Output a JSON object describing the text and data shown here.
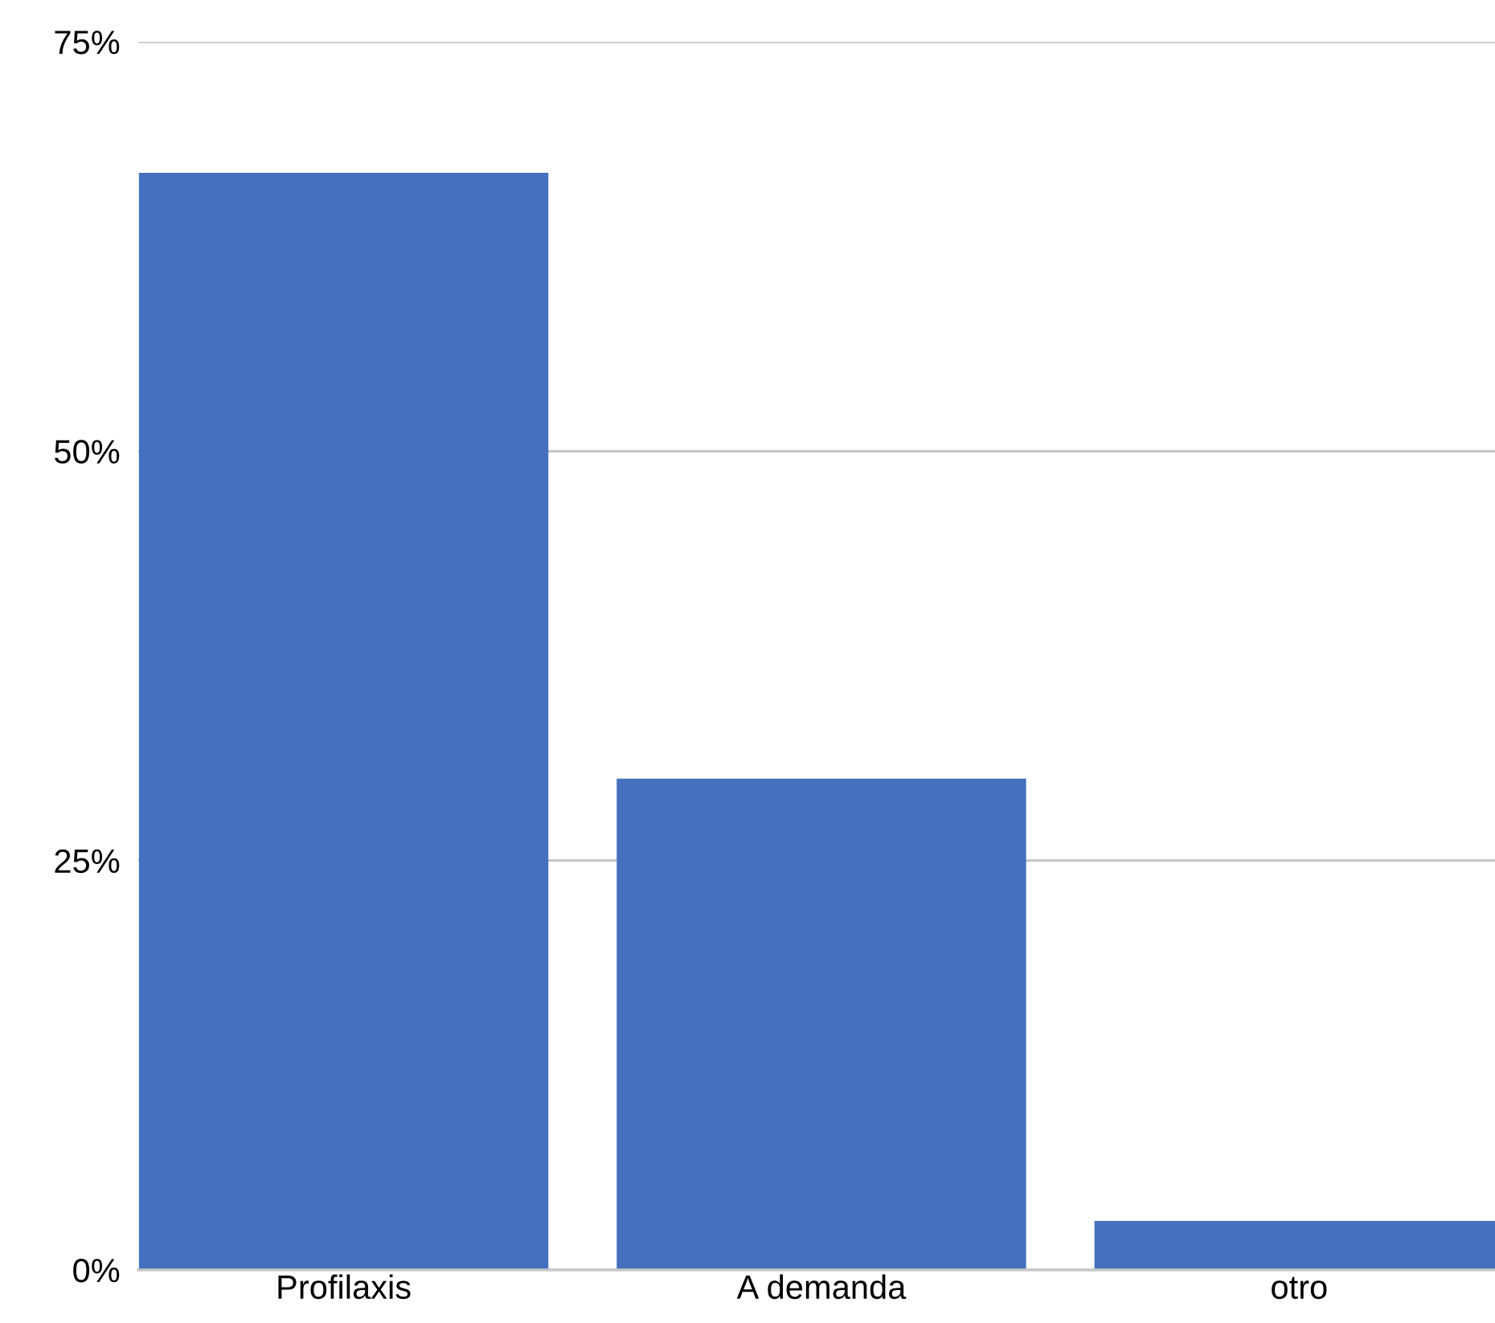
{
  "chart_data": {
    "type": "bar",
    "categories": [
      "Profilaxis",
      "A demanda",
      "otro"
    ],
    "values": [
      67,
      30,
      3
    ],
    "color": "#4470be",
    "ylim": [
      0,
      75
    ],
    "yticks": [
      {
        "value": 0,
        "label": "0%"
      },
      {
        "value": 25,
        "label": "25%"
      },
      {
        "value": 50,
        "label": "50%"
      },
      {
        "value": 75,
        "label": "75%"
      }
    ],
    "grid": "y",
    "legend": false
  }
}
